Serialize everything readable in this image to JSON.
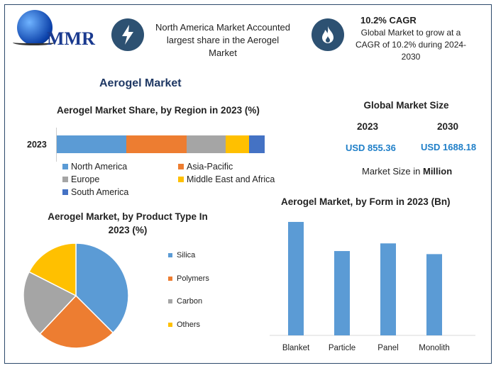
{
  "logo": {
    "text": "MMR"
  },
  "header": {
    "highlight1": "North America Market Accounted largest share in the Aerogel Market",
    "cagr_title": "10.2% CAGR",
    "cagr_text": "Global Market to grow at a CAGR of 10.2% during 2024-2030",
    "icons": [
      "lightning-icon",
      "flame-icon"
    ]
  },
  "main_title": "Aerogel Market",
  "market_size": {
    "title": "Global Market Size",
    "year1": "2023",
    "year2": "2030",
    "value1": "USD 855.36",
    "value2": "USD 1688.18",
    "note_prefix": "Market Size in ",
    "note_bold": "Million"
  },
  "colors": {
    "blue": "#5b9bd5",
    "orange": "#ed7d31",
    "gray": "#a5a5a5",
    "yellow": "#ffc000",
    "darkblue": "#4472c4",
    "value_text": "#1f7fc8",
    "icon_bg": "#2d5172"
  },
  "chart_data": [
    {
      "type": "bar",
      "orientation": "horizontal-stacked",
      "title": "Aerogel Market Share, by Region in 2023 (%)",
      "categories": [
        "2023"
      ],
      "series": [
        {
          "name": "North America",
          "values": [
            33.4
          ]
        },
        {
          "name": "Asia-Pacific",
          "values": [
            29
          ]
        },
        {
          "name": "Europe",
          "values": [
            18.8
          ]
        },
        {
          "name": "Middle East and Africa",
          "values": [
            11.3
          ]
        },
        {
          "name": "South America",
          "values": [
            7.5
          ]
        }
      ],
      "legend": "bottom"
    },
    {
      "type": "pie",
      "title": "Aerogel Market, by Product Type In 2023 (%)",
      "labels": [
        "Silica",
        "Polymers",
        "Carbon",
        "Others"
      ],
      "values": [
        37.5,
        24.5,
        20.5,
        17.5
      ],
      "legend": "right"
    },
    {
      "type": "bar",
      "title": "Aerogel Market, by Form in 2023 (Bn)",
      "categories": [
        "Blanket",
        "Particle",
        "Panel",
        "Monolith"
      ],
      "values": [
        1.48,
        1.1,
        1.2,
        1.06
      ]
    }
  ]
}
